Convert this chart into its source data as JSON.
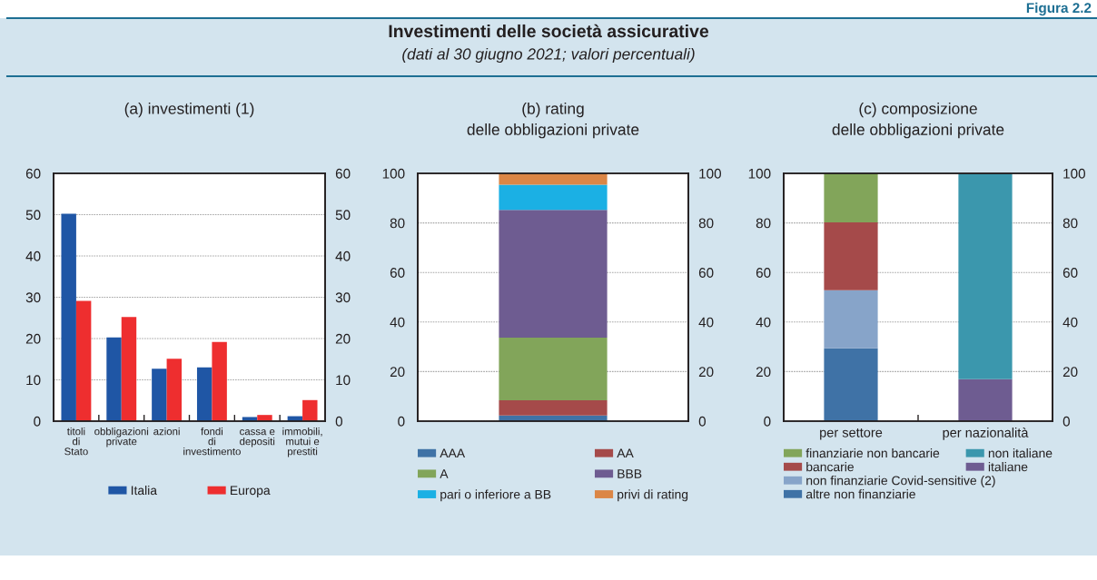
{
  "chart_data": [
    {
      "type": "other",
      "title": "Investimenti delle società assicurative",
      "subtitle": "(dati al 30 giugno 2021; valori percentuali)",
      "annotations": [
        "Figura 2.2"
      ]
    },
    {
      "type": "bar",
      "title": "(a) investimenti (1)",
      "categories": [
        "titoli\ndi\nStato",
        "obbligazioni\nprivate",
        "azioni",
        "fondi\ndi\ninvestimento",
        "cassa e\ndepositi",
        "immobili,\nmutui e\nprestiti"
      ],
      "series": [
        {
          "name": "Italia",
          "color": "#1f56a5",
          "values": [
            50.2,
            20.3,
            12.7,
            13.0,
            1.0,
            1.2
          ]
        },
        {
          "name": "Europa",
          "color": "#ee2e2f",
          "values": [
            29.1,
            25.2,
            15.1,
            19.2,
            1.5,
            5.1
          ]
        }
      ],
      "ylim": [
        0,
        60
      ],
      "yticks": [
        0,
        10,
        20,
        30,
        40,
        50,
        60
      ],
      "y2lim": [
        0,
        60
      ],
      "y2ticks": [
        0,
        10,
        20,
        30,
        40,
        50,
        60
      ],
      "grid": "y",
      "legend": "bottom"
    },
    {
      "type": "bar",
      "title": "(b) rating\ndelle obbligazioni private",
      "categories": [
        null
      ],
      "stacked": true,
      "series": [
        {
          "name": "AAA",
          "color": "#3f72a6",
          "values": [
            2.3
          ]
        },
        {
          "name": "AA",
          "color": "#a54a4a",
          "values": [
            6.1
          ]
        },
        {
          "name": "A",
          "color": "#82a55a",
          "values": [
            25.3
          ]
        },
        {
          "name": "BBB",
          "color": "#6e5c91",
          "values": [
            51.6
          ]
        },
        {
          "name": "pari o inferiore a BB",
          "color": "#1bb0e4",
          "values": [
            10.1
          ]
        },
        {
          "name": "privi di rating",
          "color": "#db8646",
          "values": [
            4.6
          ]
        }
      ],
      "ylim": [
        0,
        100
      ],
      "yticks": [
        0,
        20,
        40,
        60,
        80,
        100
      ],
      "y2lim": [
        0,
        100
      ],
      "y2ticks": [
        0,
        20,
        40,
        60,
        80,
        100
      ],
      "grid": "y",
      "legend": "bottom"
    },
    {
      "type": "bar",
      "title": "(c) composizione\ndelle obbligazioni private",
      "categories": [
        "per settore",
        "per nazionalità"
      ],
      "stacked": true,
      "series": [
        {
          "name": "altre non finanziarie",
          "color": "#3f72a6",
          "values": [
            29.4,
            null
          ]
        },
        {
          "name": "non finanziarie Covid-sensitive (2)",
          "color": "#87a4c9",
          "values": [
            23.4,
            null
          ]
        },
        {
          "name": "bancarie",
          "color": "#a54a4a",
          "values": [
            27.4,
            null
          ]
        },
        {
          "name": "finanziarie non bancarie",
          "color": "#82a55a",
          "values": [
            19.8,
            null
          ]
        },
        {
          "name": "italiane",
          "color": "#6e5c91",
          "values": [
            null,
            16.9
          ]
        },
        {
          "name": "non italiane",
          "color": "#3b97ad",
          "values": [
            null,
            83.1
          ]
        }
      ],
      "ylim": [
        0,
        100
      ],
      "yticks": [
        0,
        20,
        40,
        60,
        80,
        100
      ],
      "y2lim": [
        0,
        100
      ],
      "y2ticks": [
        0,
        20,
        40,
        60,
        80,
        100
      ],
      "grid": "y",
      "legend": "bottom"
    }
  ]
}
